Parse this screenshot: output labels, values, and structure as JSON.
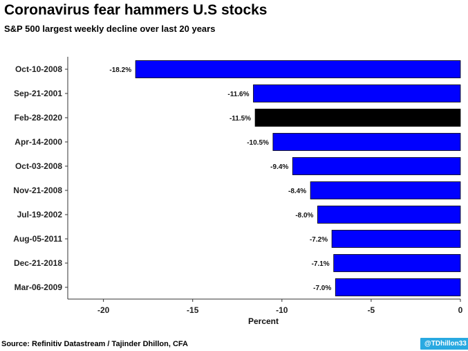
{
  "header": {
    "title": "Coronavirus fear hammers U.S stocks",
    "subtitle": "S&P 500 largest weekly decline over last 20 years"
  },
  "footer": {
    "source": "Source: Refinitiv Datastream / Tajinder Dhillon, CFA",
    "handle": "@TDhillon33"
  },
  "colors": {
    "bar": "#0000ff",
    "highlight": "#000000"
  },
  "chart_data": {
    "type": "bar",
    "orientation": "horizontal",
    "title": "Coronavirus fear hammers U.S stocks",
    "subtitle": "S&P 500 largest weekly decline over last 20 years",
    "xlabel": "Percent",
    "ylabel": "",
    "xlim": [
      -22,
      0
    ],
    "xticks": [
      -20,
      -15,
      -10,
      -5,
      0
    ],
    "grid": false,
    "categories": [
      "Oct-10-2008",
      "Sep-21-2001",
      "Feb-28-2020",
      "Apr-14-2000",
      "Oct-03-2008",
      "Nov-21-2008",
      "Jul-19-2002",
      "Aug-05-2011",
      "Dec-21-2018",
      "Mar-06-2009"
    ],
    "values": [
      -18.2,
      -11.6,
      -11.5,
      -10.5,
      -9.4,
      -8.4,
      -8.0,
      -7.2,
      -7.1,
      -7.0
    ],
    "data_labels": [
      "-18.2%",
      "-11.6%",
      "-11.5%",
      "-10.5%",
      "-9.4%",
      "-8.4%",
      "-8.0%",
      "-7.2%",
      "-7.1%",
      "-7.0%"
    ],
    "highlight_category": "Feb-28-2020"
  }
}
